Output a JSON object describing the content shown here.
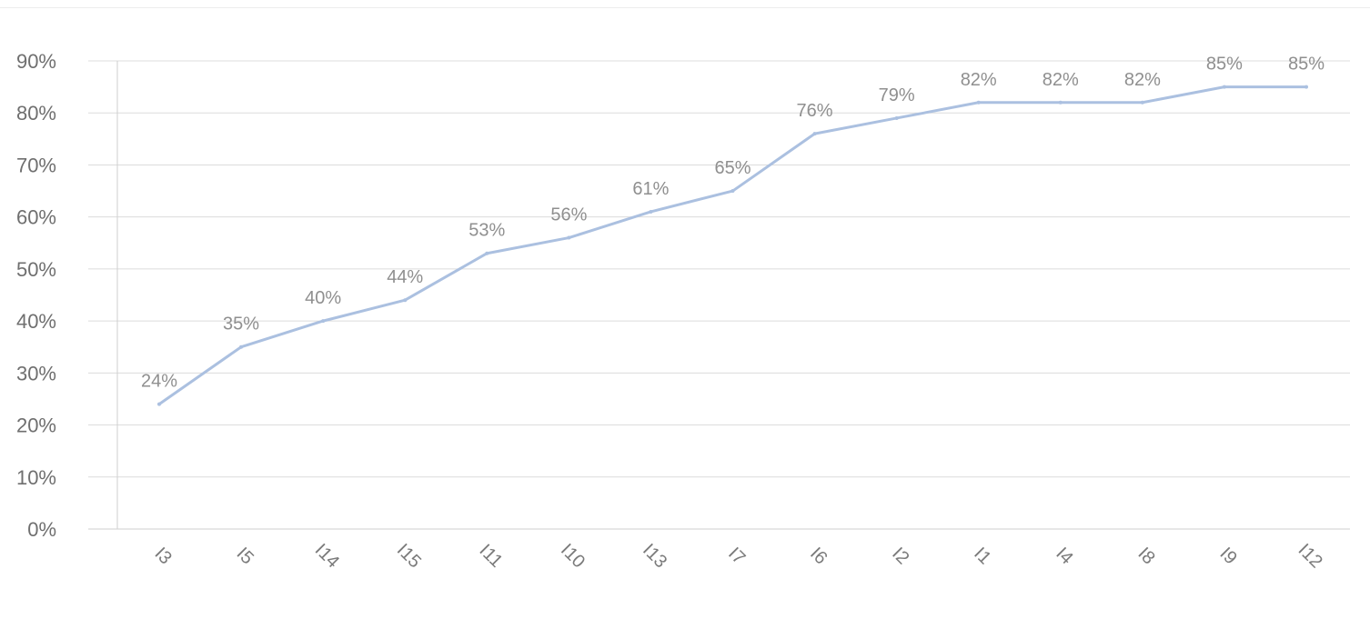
{
  "chart_data": {
    "type": "line",
    "categories": [
      "I3",
      "I5",
      "I14",
      "I15",
      "I11",
      "I10",
      "I13",
      "I7",
      "I6",
      "I2",
      "I1",
      "I4",
      "I8",
      "I9",
      "I12"
    ],
    "series": [
      {
        "values": [
          24,
          35,
          40,
          44,
          53,
          56,
          61,
          65,
          76,
          79,
          82,
          82,
          82,
          85,
          85
        ],
        "labels": [
          "24%",
          "35%",
          "40%",
          "44%",
          "53%",
          "56%",
          "61%",
          "65%",
          "76%",
          "79%",
          "82%",
          "82%",
          "82%",
          "85%",
          "85%"
        ]
      }
    ],
    "yticks": [
      "0%",
      "10%",
      "20%",
      "30%",
      "40%",
      "50%",
      "60%",
      "70%",
      "80%",
      "90%"
    ],
    "ylim": [
      0,
      90
    ],
    "title": "",
    "xlabel": "",
    "ylabel": "",
    "grid": true,
    "colors": {
      "line": "#abc0e0",
      "grid": "#dcdcdc",
      "axis": "#cfcfcf"
    }
  }
}
